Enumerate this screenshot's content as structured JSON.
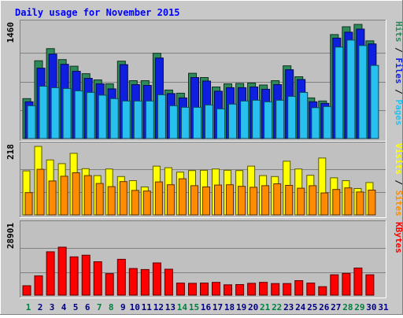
{
  "chart_data": {
    "type": "bar",
    "title": "Daily usage for November 2015",
    "categories": [
      "1",
      "2",
      "3",
      "4",
      "5",
      "6",
      "7",
      "8",
      "9",
      "10",
      "11",
      "12",
      "13",
      "14",
      "15",
      "16",
      "17",
      "18",
      "19",
      "20",
      "21",
      "22",
      "23",
      "24",
      "25",
      "26",
      "27",
      "28",
      "29",
      "30",
      "31"
    ],
    "weekend_days": [
      "1",
      "7",
      "8",
      "14",
      "15",
      "21",
      "22",
      "28",
      "29"
    ],
    "panels": [
      {
        "key": "hits",
        "ymax_label": "1460",
        "ymax": 1460,
        "legend": [
          "Pages",
          "Files",
          "Hits"
        ],
        "legend_sep": " / ",
        "series": [
          {
            "name": "Hits",
            "color": "#2f8a5a",
            "values": [
              510,
              995,
              1150,
              1010,
              925,
              830,
              750,
              700,
              990,
              740,
              740,
              1090,
              620,
              580,
              835,
              780,
              660,
              700,
              705,
              710,
              685,
              740,
              930,
              790,
              520,
              480,
              1330,
              1430,
              1460,
              1250,
              0
            ]
          },
          {
            "name": "Files",
            "color": "#0f1fe0",
            "values": [
              470,
              900,
              1080,
              950,
              860,
              770,
              700,
              635,
              945,
              690,
              680,
              1030,
              575,
              520,
              780,
              735,
              605,
              650,
              650,
              660,
              630,
              690,
              880,
              755,
              470,
              450,
              1285,
              1360,
              1400,
              1210,
              0
            ]
          },
          {
            "name": "Pages",
            "color": "#28c0ef",
            "values": [
              420,
              670,
              650,
              640,
              610,
              590,
              555,
              510,
              480,
              480,
              480,
              560,
              420,
              400,
              400,
              430,
              380,
              440,
              480,
              490,
              470,
              490,
              540,
              590,
              395,
              410,
              1170,
              1260,
              1190,
              935,
              0
            ]
          }
        ]
      },
      {
        "key": "visits",
        "ymax_label": "218",
        "ymax": 218,
        "legend": [
          "Sites",
          "Visits"
        ],
        "legend_sep": " / ",
        "series": [
          {
            "name": "Visits",
            "color": "#ffff00",
            "values": [
              140,
              218,
              175,
              163,
              196,
              147,
              125,
              146,
              122,
              109,
              89,
              155,
              150,
              136,
              141,
              142,
              146,
              142,
              141,
              155,
              125,
              122,
              171,
              146,
              126,
              181,
              118,
              109,
              84,
              103,
              0
            ]
          },
          {
            "name": "Sites",
            "color": "#ff8c00",
            "values": [
              71,
              145,
              108,
              123,
              134,
              125,
              100,
              90,
              106,
              78,
              76,
              105,
              96,
              115,
              93,
              89,
              95,
              96,
              91,
              88,
              93,
              99,
              94,
              85,
              93,
              70,
              81,
              86,
              73,
              79,
              0
            ]
          }
        ]
      },
      {
        "key": "kbytes",
        "ymax_label": "28901",
        "ymax": 28901,
        "legend": [
          "KBytes"
        ],
        "legend_sep": "",
        "series": [
          {
            "name": "KBytes",
            "color": "#ff0000",
            "values": [
              3900,
              8000,
              17900,
              19800,
              15800,
              16500,
              13800,
              8900,
              14800,
              11000,
              10600,
              13300,
              10700,
              5000,
              4900,
              5000,
              5300,
              4300,
              4400,
              4900,
              5300,
              4800,
              4800,
              6000,
              5000,
              3500,
              8400,
              9000,
              11200,
              8400,
              0
            ]
          }
        ]
      }
    ]
  },
  "colors": {
    "background": "#c8c8c8",
    "plot_background": "#c0c0c0",
    "title": "#0000ff",
    "axis_label": "#000000",
    "weekday_label": "#000080",
    "weekend_label": "#008040",
    "gridline": "#808080"
  }
}
